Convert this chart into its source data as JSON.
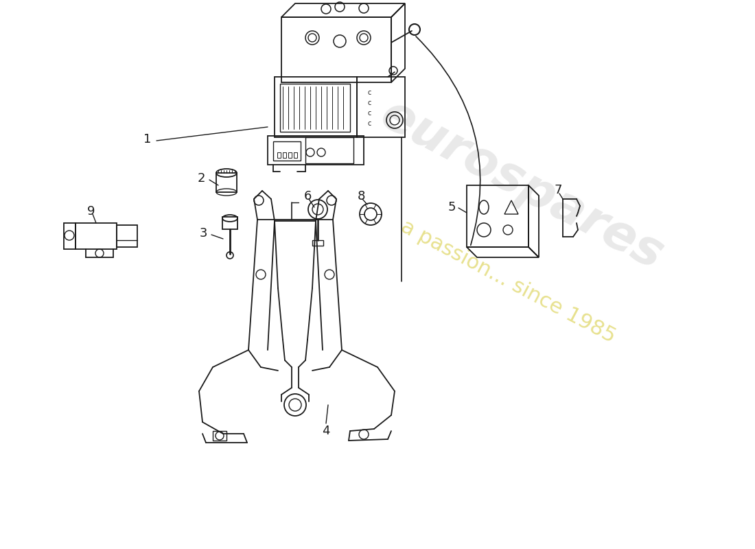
{
  "background_color": "#ffffff",
  "line_color": "#1a1a1a",
  "label_color": "#1a1a1a",
  "watermark1": "eurospares",
  "watermark2": "a passion... since 1985",
  "part1_label": "1",
  "part2_label": "2",
  "part3_label": "3",
  "part4_label": "4",
  "part5_label": "5",
  "part6_label": "6",
  "part7_label": "7",
  "part8_label": "8",
  "part9_label": "9"
}
